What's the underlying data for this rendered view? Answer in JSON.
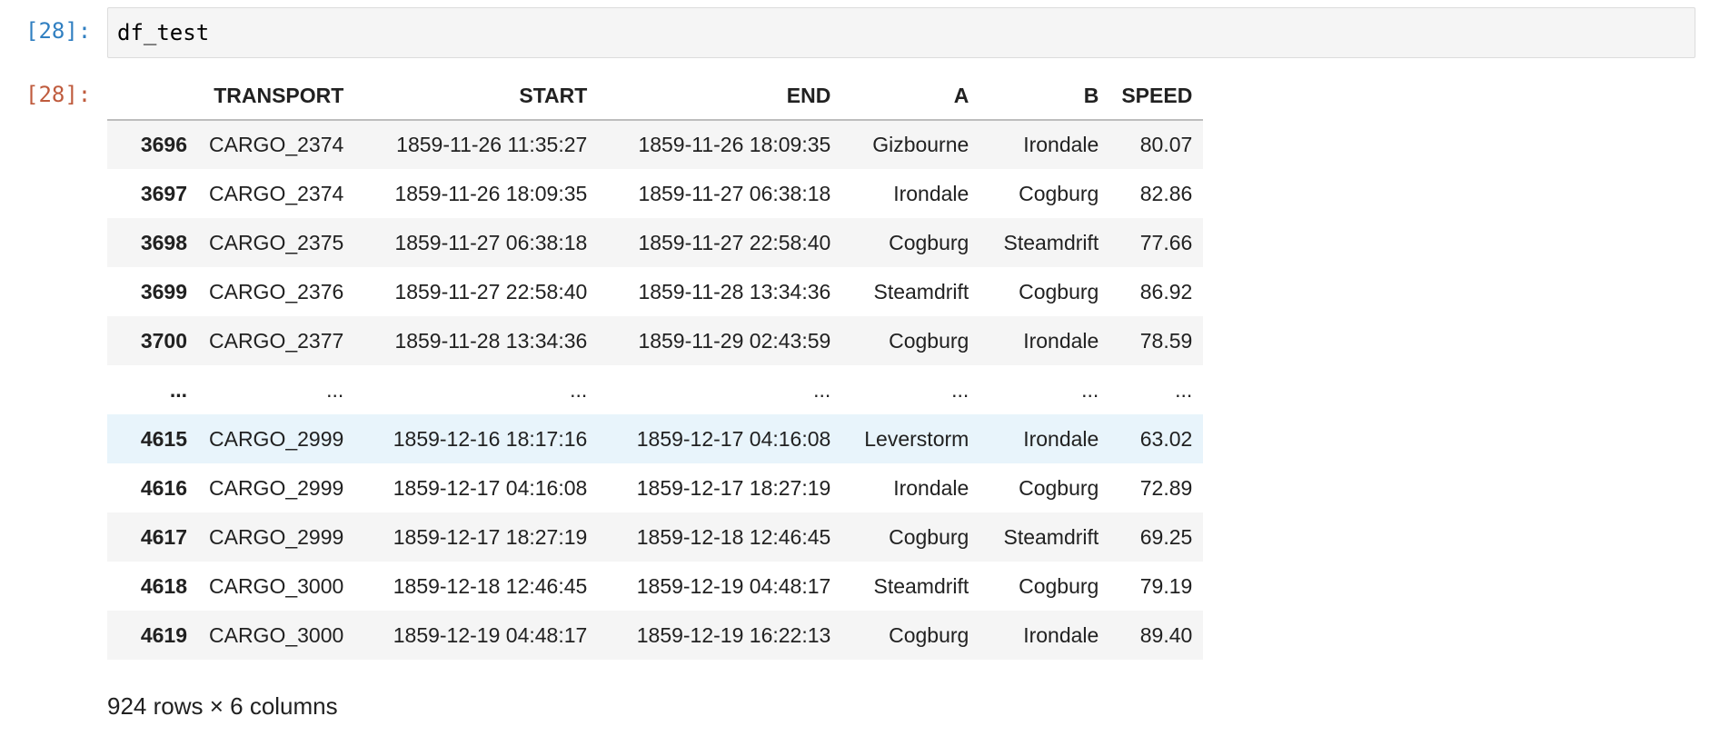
{
  "input_cell": {
    "prompt": "[28]:",
    "code": "df_test"
  },
  "output_cell": {
    "prompt": "[28]:",
    "columns": [
      "",
      "TRANSPORT",
      "START",
      "END",
      "A",
      "B",
      "SPEED"
    ],
    "rows": [
      [
        "3696",
        "CARGO_2374",
        "1859-11-26 11:35:27",
        "1859-11-26 18:09:35",
        "Gizbourne",
        "Irondale",
        "80.07"
      ],
      [
        "3697",
        "CARGO_2374",
        "1859-11-26 18:09:35",
        "1859-11-27 06:38:18",
        "Irondale",
        "Cogburg",
        "82.86"
      ],
      [
        "3698",
        "CARGO_2375",
        "1859-11-27 06:38:18",
        "1859-11-27 22:58:40",
        "Cogburg",
        "Steamdrift",
        "77.66"
      ],
      [
        "3699",
        "CARGO_2376",
        "1859-11-27 22:58:40",
        "1859-11-28 13:34:36",
        "Steamdrift",
        "Cogburg",
        "86.92"
      ],
      [
        "3700",
        "CARGO_2377",
        "1859-11-28 13:34:36",
        "1859-11-29 02:43:59",
        "Cogburg",
        "Irondale",
        "78.59"
      ],
      [
        "...",
        "...",
        "...",
        "...",
        "...",
        "...",
        "..."
      ],
      [
        "4615",
        "CARGO_2999",
        "1859-12-16 18:17:16",
        "1859-12-17 04:16:08",
        "Leverstorm",
        "Irondale",
        "63.02"
      ],
      [
        "4616",
        "CARGO_2999",
        "1859-12-17 04:16:08",
        "1859-12-17 18:27:19",
        "Irondale",
        "Cogburg",
        "72.89"
      ],
      [
        "4617",
        "CARGO_2999",
        "1859-12-17 18:27:19",
        "1859-12-18 12:46:45",
        "Cogburg",
        "Steamdrift",
        "69.25"
      ],
      [
        "4618",
        "CARGO_3000",
        "1859-12-18 12:46:45",
        "1859-12-19 04:48:17",
        "Steamdrift",
        "Cogburg",
        "79.19"
      ],
      [
        "4619",
        "CARGO_3000",
        "1859-12-19 04:48:17",
        "1859-12-19 16:22:13",
        "Cogburg",
        "Irondale",
        "89.40"
      ]
    ],
    "shape_summary": "924 rows × 6 columns"
  },
  "colors": {
    "prompt_in": "#307fc1",
    "prompt_out": "#bf5b3d",
    "row_odd": "#f5f5f5",
    "row_hover": "#e8f4fb"
  }
}
